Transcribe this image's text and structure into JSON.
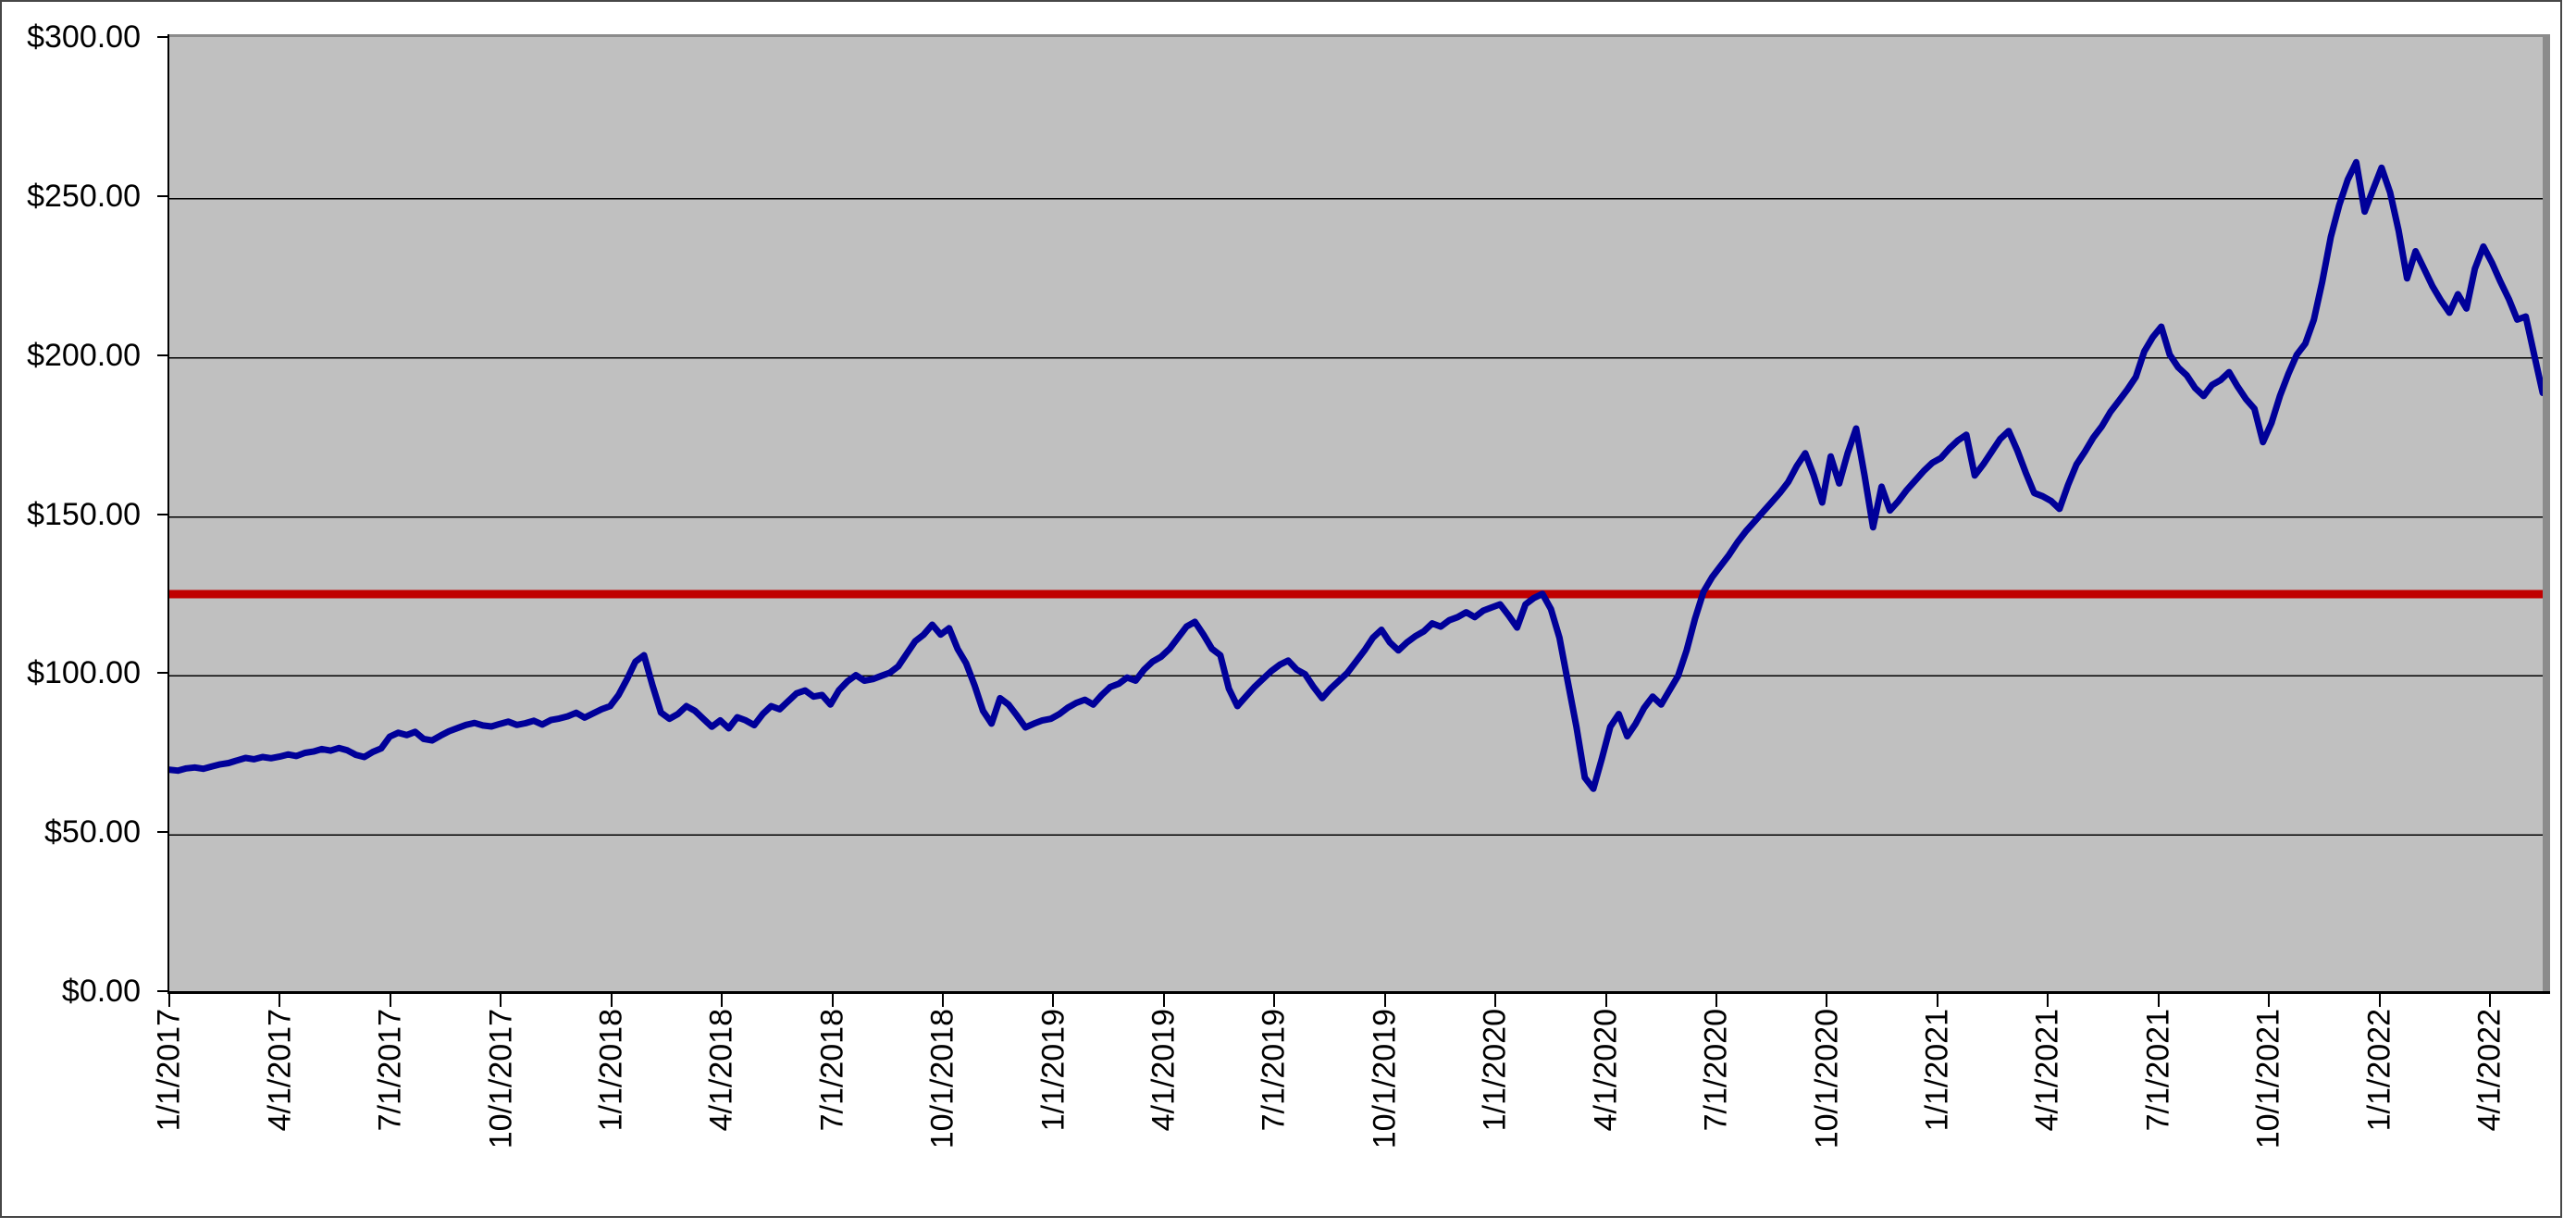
{
  "chart_data": {
    "type": "line",
    "title": "",
    "legend": "none",
    "grid": "horizontal",
    "ylim": [
      0,
      300
    ],
    "y_step": 50,
    "y_tick_format": "$0.00",
    "y_tick_labels": [
      "$300.00",
      "$250.00",
      "$200.00",
      "$150.00",
      "$100.00",
      "$50.00",
      "$0.00"
    ],
    "x_tick_labels": [
      "1/1/2017",
      "4/1/2017",
      "7/1/2017",
      "10/1/2017",
      "1/1/2018",
      "4/1/2018",
      "7/1/2018",
      "10/1/2018",
      "1/1/2019",
      "4/1/2019",
      "7/1/2019",
      "10/1/2019",
      "1/1/2020",
      "4/1/2020",
      "7/1/2020",
      "10/1/2020",
      "1/1/2021",
      "4/1/2021",
      "7/1/2021",
      "10/1/2021",
      "1/1/2022",
      "4/1/2022"
    ],
    "x_start": "1/1/2017",
    "x_end": "5/13/2022",
    "x_interval": "weekly",
    "reference_line": {
      "name": "horizontal-reference-line",
      "value": 125.7,
      "color": "#C00000",
      "stroke_width": 9
    },
    "series": [
      {
        "name": "price",
        "color": "#000099",
        "stroke_width": 7,
        "values": [
          70.5,
          70.2,
          70.9,
          71.2,
          70.8,
          71.5,
          72.2,
          72.6,
          73.4,
          74.2,
          73.8,
          74.5,
          74.1,
          74.6,
          75.3,
          74.8,
          75.8,
          76.2,
          77.0,
          76.5,
          77.3,
          76.6,
          75.2,
          74.5,
          76.1,
          77.2,
          80.9,
          82.1,
          81.4,
          82.4,
          80.2,
          79.7,
          81.2,
          82.6,
          83.6,
          84.6,
          85.2,
          84.4,
          84.1,
          84.9,
          85.6,
          84.6,
          85.1,
          85.9,
          84.7,
          86.1,
          86.6,
          87.3,
          88.4,
          86.9,
          88.2,
          89.5,
          90.5,
          94.0,
          99.0,
          104.5,
          106.5,
          97.0,
          88.5,
          86.5,
          88.0,
          90.5,
          89.0,
          86.5,
          84.0,
          86.0,
          83.5,
          87.0,
          86.0,
          84.5,
          88.0,
          90.5,
          89.5,
          92.0,
          94.5,
          95.4,
          93.5,
          94.0,
          91.0,
          95.5,
          98.3,
          100.2,
          98.5,
          99.0,
          100.0,
          101.0,
          103.0,
          107.0,
          110.9,
          113.0,
          116.1,
          113.0,
          115.0,
          108.5,
          104.0,
          97.0,
          89.0,
          85.0,
          93.0,
          91.0,
          87.5,
          83.8,
          85.0,
          86.0,
          86.5,
          88.0,
          90.0,
          91.5,
          92.5,
          91.0,
          94.0,
          96.5,
          97.5,
          99.5,
          98.5,
          102.0,
          104.5,
          106.0,
          108.5,
          112.0,
          115.5,
          117.0,
          113.0,
          108.5,
          106.5,
          96.0,
          90.5,
          93.5,
          96.5,
          99.0,
          101.5,
          103.5,
          104.8,
          102.0,
          100.5,
          96.5,
          93.0,
          96.0,
          98.5,
          101.0,
          104.5,
          108.0,
          112.0,
          114.5,
          110.5,
          108.0,
          110.5,
          112.5,
          114.0,
          116.5,
          115.5,
          117.5,
          118.5,
          120.0,
          118.5,
          120.5,
          121.5,
          122.5,
          119.0,
          115.2,
          122.5,
          124.5,
          125.8,
          121.0,
          112.0,
          98.0,
          84.0,
          68.0,
          64.5,
          74.0,
          84.0,
          88.0,
          81.0,
          85.0,
          90.0,
          93.5,
          91.0,
          95.5,
          100.0,
          108.0,
          118.0,
          126.5,
          131.0,
          134.5,
          138.0,
          142.0,
          145.5,
          148.5,
          151.5,
          154.5,
          157.5,
          161.0,
          166.0,
          170.0,
          163.0,
          154.5,
          169.0,
          160.5,
          170.0,
          177.8,
          163.0,
          146.7,
          159.5,
          152.0,
          155.0,
          158.5,
          161.5,
          164.5,
          167.0,
          168.5,
          171.5,
          174.0,
          175.8,
          163.0,
          166.5,
          170.5,
          174.5,
          177.0,
          171.0,
          164.0,
          157.5,
          156.5,
          155.0,
          152.5,
          160.0,
          166.5,
          170.5,
          175.0,
          178.5,
          183.0,
          186.5,
          190.0,
          194.0,
          202.0,
          206.5,
          209.8,
          201.0,
          197.0,
          194.5,
          190.5,
          188.0,
          191.5,
          193.0,
          195.5,
          191.0,
          187.0,
          184.0,
          173.5,
          179.5,
          188.0,
          195.0,
          201.0,
          204.5,
          212.0,
          224.0,
          238.0,
          248.0,
          256.0,
          261.5,
          246.0,
          253.0,
          259.8,
          252.0,
          240.0,
          225.0,
          233.5,
          228.0,
          222.5,
          218.0,
          214.2,
          220.0,
          215.5,
          228.0,
          235.0,
          230.0,
          224.0,
          218.5,
          212.0,
          213.0,
          201.0,
          189.0
        ]
      }
    ]
  },
  "style": {
    "page_bg": "#FFFFFF",
    "plot_bg": "#C0C0C0",
    "grid_color": "#000000",
    "axis_color": "#000000",
    "plot_border_color": "#8B8B8B",
    "frame_color": "#474747",
    "label_color": "#000000"
  }
}
